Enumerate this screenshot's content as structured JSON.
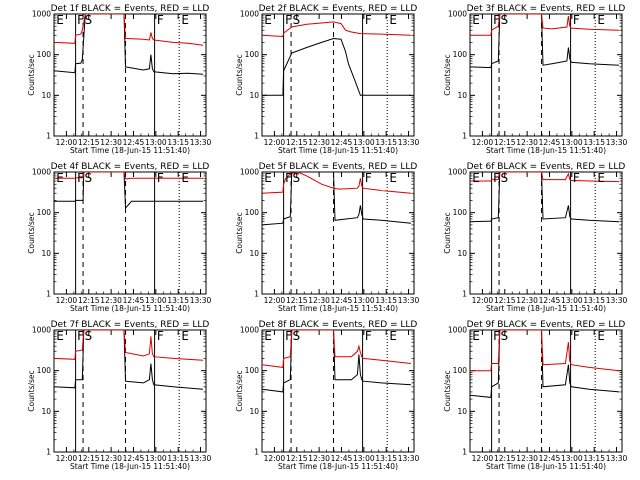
{
  "chart_data": {
    "type": "line",
    "layout_grid": "3x3",
    "y_scale": "log",
    "ylim": [
      1,
      1000
    ],
    "ytick_labels": [
      "1",
      "10",
      "100",
      "1000"
    ],
    "x_units": "minutes since 11:51:40",
    "xlim": [
      0,
      102
    ],
    "xtick_labels": [
      "12:00",
      "12:15",
      "12:30",
      "12:45",
      "13:00",
      "13:15",
      "13:30"
    ],
    "xlabel": "Start Time (18-Jun-15 11:51:40)",
    "ylabel": "Counts/sec",
    "series_colors": {
      "Events": "#000000",
      "LLD": "#dd0000"
    },
    "panels": [
      {
        "title": "Det 1f BLACK = Events, RED = LLD",
        "markers": [
          {
            "text": "E",
            "x": 1.5
          },
          {
            "text": "F",
            "x": 15.5
          },
          {
            "text": "S",
            "x": 20.5
          },
          {
            "text": "F",
            "x": 69
          },
          {
            "text": "E",
            "x": 85.5
          }
        ],
        "vlines": [
          {
            "x": 14.5,
            "style": "solid"
          },
          {
            "x": 19.5,
            "style": "dashed"
          },
          {
            "x": 48,
            "style": "dashed"
          },
          {
            "x": 67.5,
            "style": "solid"
          },
          {
            "x": 84,
            "style": "dotted"
          }
        ],
        "events": {
          "x": [
            0,
            14,
            14.5,
            18,
            19,
            21,
            47,
            48,
            60,
            64,
            65,
            66,
            67,
            80,
            90,
            100
          ],
          "y": [
            40,
            36,
            60,
            62,
            75,
            1000,
            1000,
            50,
            42,
            45,
            100,
            45,
            38,
            34,
            35,
            33
          ]
        },
        "lld": {
          "x": [
            0,
            14,
            14.5,
            18,
            19,
            21,
            47,
            48,
            60,
            64,
            65,
            66,
            67,
            80,
            90,
            100
          ],
          "y": [
            200,
            190,
            300,
            320,
            400,
            1000,
            1000,
            250,
            240,
            230,
            350,
            250,
            230,
            200,
            190,
            170
          ]
        }
      },
      {
        "title": "Det 2f BLACK = Events, RED = LLD",
        "markers": [
          {
            "text": "E",
            "x": 1.5
          },
          {
            "text": "F",
            "x": 15.5
          },
          {
            "text": "S",
            "x": 20.5
          },
          {
            "text": "F",
            "x": 69
          },
          {
            "text": "E",
            "x": 85.5
          }
        ],
        "vlines": [
          {
            "x": 14.5,
            "style": "solid"
          },
          {
            "x": 19.5,
            "style": "dashed"
          },
          {
            "x": 48,
            "style": "dashed"
          },
          {
            "x": 67.5,
            "style": "solid"
          },
          {
            "x": 84,
            "style": "dotted"
          }
        ],
        "events": {
          "x": [
            0,
            14,
            14.5,
            20,
            30,
            40,
            48,
            53,
            56,
            58,
            62,
            66,
            80,
            100
          ],
          "y": [
            10,
            10,
            40,
            110,
            150,
            200,
            250,
            240,
            120,
            60,
            25,
            10,
            10,
            10
          ]
        },
        "lld": {
          "x": [
            0,
            14,
            14.5,
            20,
            30,
            40,
            48,
            53,
            56,
            60,
            66,
            80,
            100
          ],
          "y": [
            300,
            280,
            340,
            480,
            560,
            600,
            640,
            580,
            400,
            360,
            330,
            320,
            300
          ]
        }
      },
      {
        "title": "Det 3f BLACK = Events, RED = LLD",
        "markers": [
          {
            "text": "E",
            "x": 1.5
          },
          {
            "text": "F",
            "x": 15.5
          },
          {
            "text": "S",
            "x": 20.5
          },
          {
            "text": "F",
            "x": 69
          },
          {
            "text": "E",
            "x": 85.5
          }
        ],
        "vlines": [
          {
            "x": 14.5,
            "style": "solid"
          },
          {
            "x": 19.5,
            "style": "dashed"
          },
          {
            "x": 48,
            "style": "dashed"
          },
          {
            "x": 67.5,
            "style": "solid"
          },
          {
            "x": 84,
            "style": "dotted"
          }
        ],
        "events": {
          "x": [
            0,
            14,
            14.5,
            19,
            20,
            48,
            49,
            55,
            65,
            66,
            67,
            68,
            80,
            100
          ],
          "y": [
            50,
            48,
            60,
            70,
            1000,
            1000,
            55,
            60,
            70,
            150,
            80,
            65,
            60,
            55
          ]
        },
        "lld": {
          "x": [
            0,
            14,
            14.5,
            19,
            20,
            48,
            49,
            55,
            65,
            66,
            67,
            68,
            80,
            100
          ],
          "y": [
            300,
            300,
            400,
            500,
            1000,
            1000,
            450,
            430,
            480,
            900,
            500,
            450,
            420,
            400
          ]
        }
      },
      {
        "title": "Det 4f BLACK = Events, RED = LLD",
        "markers": [
          {
            "text": "E",
            "x": 1.5
          },
          {
            "text": "F",
            "x": 15.5
          },
          {
            "text": "S",
            "x": 20.5
          },
          {
            "text": "F",
            "x": 69
          },
          {
            "text": "E",
            "x": 85.5
          }
        ],
        "vlines": [
          {
            "x": 14.5,
            "style": "solid"
          },
          {
            "x": 19.5,
            "style": "dashed"
          },
          {
            "x": 48,
            "style": "dashed"
          },
          {
            "x": 67.5,
            "style": "solid"
          },
          {
            "x": 84,
            "style": "dotted"
          }
        ],
        "events": {
          "x": [
            0,
            14,
            14.5,
            19.5,
            20,
            47,
            48,
            52,
            67,
            100
          ],
          "y": [
            190,
            190,
            200,
            200,
            1000,
            1000,
            130,
            190,
            190,
            190
          ]
        },
        "lld": {
          "x": [
            0,
            14,
            14.5,
            19.5,
            20,
            47,
            48,
            52,
            67,
            100
          ],
          "y": [
            700,
            700,
            720,
            720,
            1000,
            1000,
            680,
            700,
            700,
            700
          ]
        }
      },
      {
        "title": "Det 5f BLACK = Events, RED = LLD",
        "markers": [
          {
            "text": "E",
            "x": 1.5
          },
          {
            "text": "F",
            "x": 15.5
          },
          {
            "text": "S",
            "x": 20.5
          },
          {
            "text": "F",
            "x": 69
          },
          {
            "text": "E",
            "x": 85.5
          }
        ],
        "vlines": [
          {
            "x": 14.5,
            "style": "solid"
          },
          {
            "x": 19.5,
            "style": "dashed"
          },
          {
            "x": 48,
            "style": "dashed"
          },
          {
            "x": 67.5,
            "style": "solid"
          },
          {
            "x": 84,
            "style": "dotted"
          }
        ],
        "events": {
          "x": [
            0,
            14,
            14.5,
            19,
            20,
            48,
            49,
            64,
            65,
            66,
            67,
            68,
            80,
            100
          ],
          "y": [
            50,
            55,
            70,
            80,
            1000,
            1000,
            65,
            75,
            90,
            150,
            90,
            70,
            65,
            55
          ]
        },
        "lld": {
          "x": [
            0,
            14,
            14.5,
            16,
            19,
            24,
            30,
            40,
            48,
            52,
            64,
            65,
            66,
            67,
            68,
            80,
            100
          ],
          "y": [
            300,
            320,
            500,
            700,
            900,
            1000,
            800,
            500,
            400,
            380,
            400,
            450,
            700,
            450,
            400,
            350,
            300
          ]
        }
      },
      {
        "title": "Det 6f BLACK = Events, RED = LLD",
        "markers": [
          {
            "text": "E",
            "x": 1.5
          },
          {
            "text": "F",
            "x": 15.5
          },
          {
            "text": "S",
            "x": 20.5
          },
          {
            "text": "F",
            "x": 69
          },
          {
            "text": "E",
            "x": 85.5
          }
        ],
        "vlines": [
          {
            "x": 14.5,
            "style": "solid"
          },
          {
            "x": 19.5,
            "style": "dashed"
          },
          {
            "x": 48,
            "style": "dashed"
          },
          {
            "x": 67.5,
            "style": "solid"
          },
          {
            "x": 84,
            "style": "dotted"
          }
        ],
        "events": {
          "x": [
            0,
            14,
            14.5,
            19,
            20,
            48,
            49,
            64,
            66,
            67,
            68,
            80,
            100
          ],
          "y": [
            60,
            62,
            70,
            75,
            1000,
            1000,
            70,
            75,
            150,
            80,
            70,
            65,
            60
          ]
        },
        "lld": {
          "x": [
            0,
            14,
            14.5,
            19,
            20,
            48,
            49,
            64,
            66,
            67,
            68,
            80,
            100
          ],
          "y": [
            600,
            600,
            650,
            650,
            1000,
            1000,
            650,
            650,
            900,
            650,
            620,
            600,
            580
          ]
        }
      },
      {
        "title": "Det 7f BLACK = Events, RED = LLD",
        "markers": [
          {
            "text": "E",
            "x": 1.5
          },
          {
            "text": "F",
            "x": 15.5
          },
          {
            "text": "S",
            "x": 20.5
          },
          {
            "text": "F",
            "x": 69
          },
          {
            "text": "E",
            "x": 85.5
          }
        ],
        "vlines": [
          {
            "x": 14.5,
            "style": "solid"
          },
          {
            "x": 19.5,
            "style": "dashed"
          },
          {
            "x": 48,
            "style": "dashed"
          },
          {
            "x": 67.5,
            "style": "solid"
          },
          {
            "x": 84,
            "style": "dotted"
          }
        ],
        "events": {
          "x": [
            0,
            14,
            14.5,
            19,
            20,
            47,
            48,
            60,
            64,
            65,
            66,
            67,
            80,
            100
          ],
          "y": [
            40,
            38,
            60,
            60,
            1000,
            1000,
            55,
            50,
            60,
            150,
            60,
            45,
            40,
            35
          ]
        },
        "lld": {
          "x": [
            0,
            14,
            14.5,
            19,
            20,
            47,
            48,
            60,
            64,
            65,
            66,
            67,
            80,
            100
          ],
          "y": [
            200,
            190,
            300,
            320,
            1000,
            1000,
            280,
            230,
            260,
            700,
            260,
            220,
            200,
            180
          ]
        }
      },
      {
        "title": "Det 8f BLACK = Events, RED = LLD",
        "markers": [
          {
            "text": "E",
            "x": 1.5
          },
          {
            "text": "F",
            "x": 15.5
          },
          {
            "text": "S",
            "x": 20.5
          },
          {
            "text": "F",
            "x": 69
          },
          {
            "text": "E",
            "x": 85.5
          }
        ],
        "vlines": [
          {
            "x": 14.5,
            "style": "solid"
          },
          {
            "x": 19.5,
            "style": "dashed"
          },
          {
            "x": 48,
            "style": "dashed"
          },
          {
            "x": 67.5,
            "style": "solid"
          },
          {
            "x": 84,
            "style": "dotted"
          }
        ],
        "events": {
          "x": [
            0,
            14,
            14.5,
            19,
            20,
            48,
            49,
            60,
            64,
            65,
            66,
            67,
            68,
            80,
            100
          ],
          "y": [
            35,
            30,
            50,
            60,
            1000,
            1000,
            60,
            60,
            80,
            250,
            80,
            60,
            55,
            50,
            45
          ]
        },
        "lld": {
          "x": [
            0,
            14,
            14.5,
            19,
            20,
            48,
            49,
            60,
            64,
            65,
            66,
            67,
            68,
            80,
            100
          ],
          "y": [
            140,
            120,
            200,
            220,
            1000,
            1000,
            220,
            220,
            300,
            400,
            280,
            220,
            200,
            180,
            150
          ]
        }
      },
      {
        "title": "Det 9f BLACK = Events, RED = LLD",
        "markers": [
          {
            "text": "E",
            "x": 1.5
          },
          {
            "text": "F",
            "x": 15.5
          },
          {
            "text": "S",
            "x": 20.5
          },
          {
            "text": "F",
            "x": 69
          },
          {
            "text": "E",
            "x": 85.5
          }
        ],
        "vlines": [
          {
            "x": 14.5,
            "style": "solid"
          },
          {
            "x": 19.5,
            "style": "dashed"
          },
          {
            "x": 48,
            "style": "dashed"
          },
          {
            "x": 67.5,
            "style": "solid"
          },
          {
            "x": 84,
            "style": "dotted"
          }
        ],
        "events": {
          "x": [
            0,
            14,
            14.5,
            19,
            20,
            48,
            49,
            64,
            66,
            67,
            68,
            80,
            100
          ],
          "y": [
            25,
            22,
            40,
            50,
            1000,
            1000,
            40,
            45,
            140,
            50,
            40,
            35,
            30
          ]
        },
        "lld": {
          "x": [
            0,
            14,
            14.5,
            19,
            20,
            48,
            49,
            64,
            66,
            67,
            68,
            80,
            100
          ],
          "y": [
            100,
            100,
            150,
            150,
            1000,
            1000,
            140,
            150,
            500,
            170,
            140,
            120,
            100
          ]
        }
      }
    ]
  }
}
